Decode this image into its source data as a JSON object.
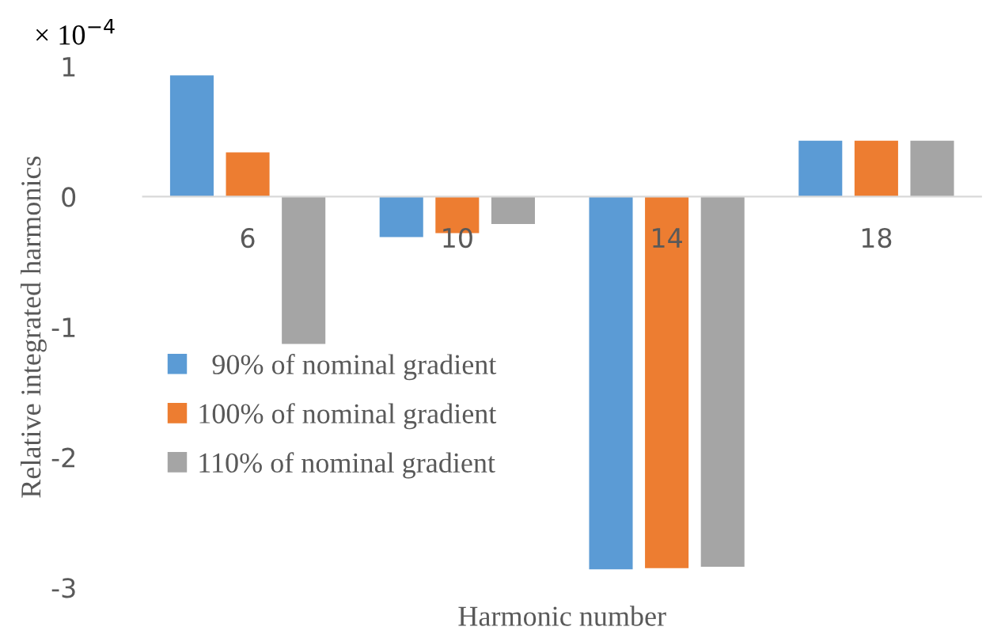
{
  "chart_data": {
    "type": "bar",
    "xlabel": "Harmonic number",
    "ylabel": "Relative integrated harmonics",
    "annotations": [
      "× 10$^{−4}$"
    ],
    "categories": [
      "6",
      "10",
      "14",
      "18"
    ],
    "series": [
      {
        "name": "  90% of nominal gradient",
        "color": "#5b9bd5",
        "values": [
          0.93,
          -0.31,
          -2.86,
          0.43
        ]
      },
      {
        "name": "100% of nominal gradient",
        "color": "#ed7d31",
        "values": [
          0.34,
          -0.28,
          -2.85,
          0.43
        ]
      },
      {
        "name": "110% of nominal gradient",
        "color": "#a5a5a5",
        "values": [
          -1.13,
          -0.21,
          -2.84,
          0.43
        ]
      }
    ],
    "ylim": [
      -3,
      1
    ],
    "yticks": [
      -3,
      -2,
      -1,
      0,
      1
    ],
    "grid": false,
    "legend": "bottom left"
  }
}
